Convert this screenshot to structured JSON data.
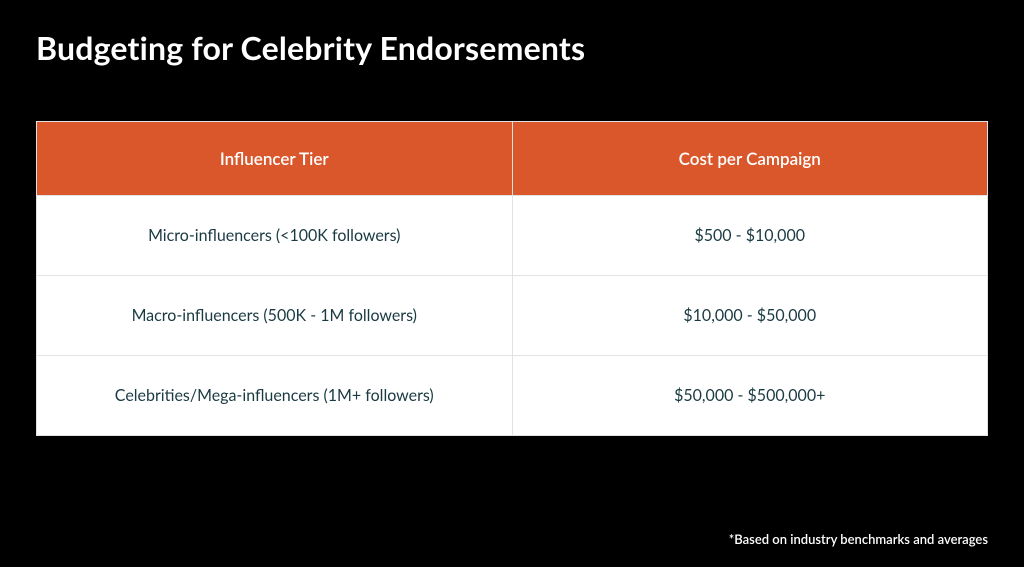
{
  "title": "Budgeting for Celebrity Endorsements",
  "table": {
    "type": "table",
    "columns": [
      "Influencer Tier",
      "Cost per Campaign"
    ],
    "rows": [
      [
        "Micro-influencers (<100K followers)",
        "$500 - $10,000"
      ],
      [
        "Macro-influencers (500K - 1M followers)",
        "$10,000 - $50,000"
      ],
      [
        "Celebrities/Mega-influencers (1M+ followers)",
        "$50,000 - $500,000+"
      ]
    ],
    "header_bg_color": "#d9572b",
    "header_text_color": "#ffffff",
    "body_bg_color": "#ffffff",
    "body_text_color": "#1a3a42",
    "cell_border_color": "#e2e2e2",
    "header_fontsize": 17,
    "body_fontsize": 16,
    "column_widths": [
      "50%",
      "50%"
    ]
  },
  "footnote": "*Based on industry benchmarks and averages",
  "slide_bg_color": "#000000",
  "title_color": "#ffffff",
  "title_fontsize": 32,
  "footnote_color": "#ffffff",
  "footnote_fontsize": 13
}
